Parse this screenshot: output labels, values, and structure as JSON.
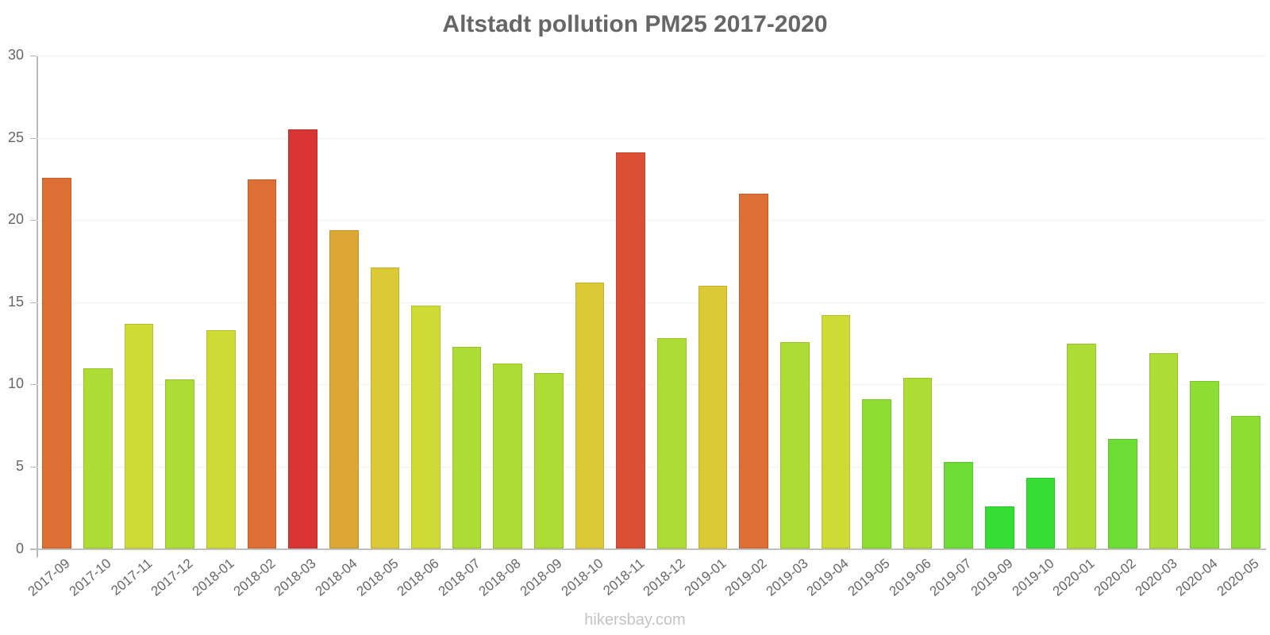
{
  "title": "Altstadt pollution PM25 2017-2020",
  "footer": "hikersbay.com",
  "y_ticks": [
    "0",
    "5",
    "10",
    "15",
    "20",
    "25",
    "30"
  ],
  "chart_data": {
    "type": "bar",
    "title": "Altstadt pollution PM25 2017-2020",
    "xlabel": "",
    "ylabel": "",
    "ylim": [
      0,
      30
    ],
    "yticks": [
      0,
      5,
      10,
      15,
      20,
      25,
      30
    ],
    "grid": true,
    "legend": null,
    "categories": [
      "2017-09",
      "2017-10",
      "2017-11",
      "2017-12",
      "2018-01",
      "2018-02",
      "2018-03",
      "2018-04",
      "2018-05",
      "2018-06",
      "2018-07",
      "2018-08",
      "2018-09",
      "2018-10",
      "2018-11",
      "2018-12",
      "2019-01",
      "2019-02",
      "2019-03",
      "2019-04",
      "2019-05",
      "2019-06",
      "2019-07",
      "2019-09",
      "2019-10",
      "2020-01",
      "2020-02",
      "2020-03",
      "2020-04",
      "2020-05"
    ],
    "values": [
      22.6,
      11.0,
      13.7,
      10.3,
      13.3,
      22.5,
      25.5,
      19.4,
      17.1,
      14.8,
      12.3,
      11.3,
      10.7,
      16.2,
      24.1,
      12.8,
      16.0,
      21.6,
      12.6,
      14.2,
      9.1,
      10.4,
      5.3,
      2.6,
      4.3,
      12.5,
      6.7,
      11.9,
      10.2,
      8.1
    ],
    "colors": [
      "#dd6f35",
      "#addc35",
      "#cedb35",
      "#addc35",
      "#cedb35",
      "#dd6f35",
      "#d93535",
      "#dca734",
      "#dbc935",
      "#cedb35",
      "#addc35",
      "#addc35",
      "#addc35",
      "#dbc935",
      "#db4f35",
      "#addc35",
      "#dbc935",
      "#dd6f35",
      "#addc35",
      "#cedb35",
      "#8ddd35",
      "#addc35",
      "#6ddd35",
      "#35dd35",
      "#35dd35",
      "#addc35",
      "#6ddd35",
      "#addc35",
      "#8ddd35",
      "#8ddd35"
    ],
    "source": "hikersbay.com"
  }
}
